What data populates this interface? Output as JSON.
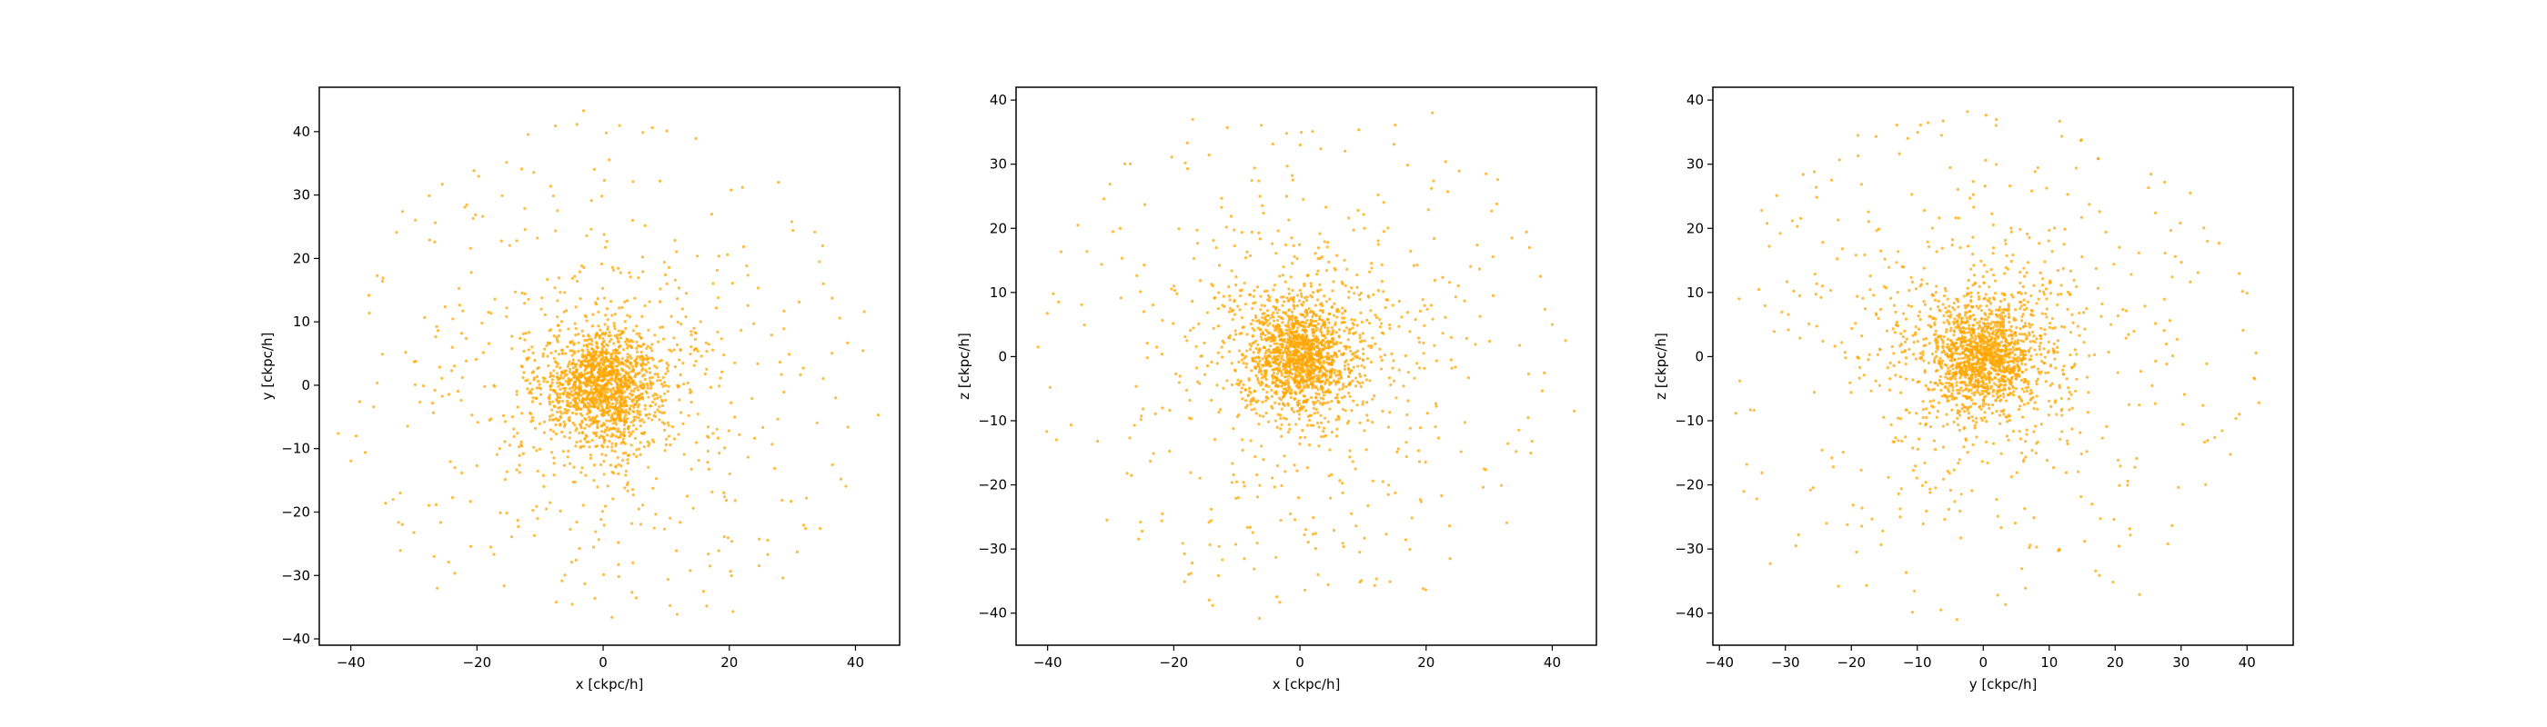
{
  "chart_data": [
    {
      "type": "scatter",
      "title": "",
      "xlabel": "x [ckpc/h]",
      "ylabel": "y [ckpc/h]",
      "xlim": [
        -45,
        47
      ],
      "ylim": [
        -41,
        47
      ],
      "xticks": [
        -40,
        -20,
        0,
        20,
        40
      ],
      "yticks": [
        -40,
        -30,
        -20,
        -10,
        0,
        10,
        20,
        30,
        40
      ],
      "grid": false,
      "legend": "none",
      "marker_color": "#FFA500",
      "series": [
        {
          "distribution": "concentrated near origin",
          "points_approx": 2000,
          "core_center": [
            0,
            0
          ],
          "core_sigma": [
            4,
            4
          ],
          "halo_extent": [
            [
              -42,
              43
            ],
            [
              -37,
              43
            ]
          ],
          "points": [
            [
              -3.1,
              43.3
            ],
            [
              7.8,
              40.6
            ],
            [
              0.5,
              39.8
            ],
            [
              10.1,
              40.1
            ],
            [
              14.7,
              38.9
            ],
            [
              -25.5,
              31.7
            ],
            [
              -12.9,
              34.1
            ],
            [
              27.8,
              32.0
            ],
            [
              -20.6,
              26.3
            ],
            [
              9.0,
              32.2
            ],
            [
              -16.0,
              29.9
            ],
            [
              29.9,
              25.8
            ],
            [
              -27.5,
              22.9
            ],
            [
              -26.7,
              22.6
            ],
            [
              22.1,
              31.2
            ],
            [
              -13.7,
              22.8
            ],
            [
              19.7,
              20.6
            ],
            [
              -34.9,
              16.9
            ],
            [
              -20.9,
              17.8
            ],
            [
              34.9,
              16.0
            ],
            [
              -31.3,
              5.2
            ],
            [
              -35.0,
              4.9
            ],
            [
              37.5,
              10.6
            ],
            [
              41.4,
              11.6
            ],
            [
              -29.8,
              0.1
            ],
            [
              -28.5,
              -0.1
            ],
            [
              -42.0,
              -7.6
            ],
            [
              -38.6,
              -2.6
            ],
            [
              43.6,
              -4.7
            ],
            [
              38.8,
              -6.6
            ],
            [
              -34.5,
              -18.6
            ],
            [
              -26.8,
              -27.0
            ],
            [
              -26.3,
              -32.0
            ],
            [
              28.5,
              -30.4
            ],
            [
              34.4,
              -22.6
            ],
            [
              -2.9,
              -31.3
            ],
            [
              -1.3,
              -33.6
            ],
            [
              1.4,
              -36.6
            ],
            [
              15.9,
              -32.5
            ],
            [
              26.1,
              -26.7
            ],
            [
              -14.5,
              -23.9
            ],
            [
              -10.9,
              -23.7
            ],
            [
              11.6,
              -26.1
            ],
            [
              20.4,
              -24.6
            ],
            [
              -23.5,
              -13.0
            ],
            [
              -15.3,
              12.2
            ],
            [
              13.2,
              14.5
            ],
            [
              -8.5,
              8.6
            ],
            [
              8.2,
              7.9
            ],
            [
              -11.0,
              -9.8
            ],
            [
              10.0,
              -9.4
            ],
            [
              -5.3,
              2.1
            ],
            [
              4.6,
              -2.4
            ],
            [
              -2.1,
              -5.5
            ],
            [
              2.6,
              5.1
            ],
            [
              -0.8,
              1.3
            ],
            [
              1.1,
              -0.7
            ],
            [
              0.4,
              0.2
            ],
            [
              -1.6,
              -1.2
            ],
            [
              2.0,
              1.8
            ],
            [
              -6.8,
              -3.5
            ],
            [
              6.1,
              3.3
            ],
            [
              -3.9,
              6.7
            ],
            [
              3.4,
              -6.9
            ],
            [
              -9.4,
              0.6
            ],
            [
              9.3,
              0.2
            ],
            [
              0.3,
              9.6
            ],
            [
              -0.2,
              -9.5
            ],
            [
              -15.8,
              -4.8
            ],
            [
              15.6,
              4.6
            ],
            [
              -4.5,
              17.2
            ],
            [
              4.8,
              -17.3
            ],
            [
              -19.2,
              9.8
            ],
            [
              18.4,
              -10.7
            ],
            [
              -9.0,
              -19.5
            ],
            [
              9.7,
              19.4
            ],
            [
              -24.0,
              2.3
            ],
            [
              23.6,
              -2.1
            ],
            [
              -1.9,
              24.6
            ],
            [
              2.4,
              -24.8
            ]
          ]
        }
      ]
    },
    {
      "type": "scatter",
      "title": "",
      "xlabel": "x [ckpc/h]",
      "ylabel": "z [ckpc/h]",
      "xlim": [
        -45,
        47
      ],
      "ylim": [
        -45,
        42
      ],
      "xticks": [
        -40,
        -20,
        0,
        20,
        40
      ],
      "yticks": [
        -40,
        -30,
        -20,
        -10,
        0,
        10,
        20,
        30,
        40
      ],
      "grid": false,
      "legend": "none",
      "marker_color": "#FFA500",
      "series": [
        {
          "distribution": "concentrated near origin",
          "points_approx": 2000,
          "core_center": [
            0,
            0
          ],
          "core_sigma": [
            4,
            4
          ],
          "halo_extent": [
            [
              -42,
              43
            ],
            [
              -41,
              38
            ]
          ],
          "points": [
            [
              -17.0,
              37.0
            ],
            [
              21.0,
              38.0
            ],
            [
              -11.5,
              35.7
            ],
            [
              2.0,
              35.1
            ],
            [
              -2.1,
              34.8
            ],
            [
              15.1,
              36.1
            ],
            [
              -30.1,
              26.9
            ],
            [
              -24.6,
              23.7
            ],
            [
              29.5,
              28.5
            ],
            [
              23.1,
              30.4
            ],
            [
              -35.2,
              20.5
            ],
            [
              -28.5,
              20.0
            ],
            [
              33.6,
              18.5
            ],
            [
              30.4,
              22.7
            ],
            [
              -39.1,
              9.8
            ],
            [
              -34.6,
              8.1
            ],
            [
              40.0,
              5.0
            ],
            [
              42.1,
              2.5
            ],
            [
              -41.5,
              1.5
            ],
            [
              -39.6,
              -4.8
            ],
            [
              43.5,
              -8.5
            ],
            [
              36.8,
              -13.2
            ],
            [
              -38.6,
              -13.0
            ],
            [
              -30.6,
              -25.5
            ],
            [
              -21.9,
              -25.6
            ],
            [
              32.8,
              -25.9
            ],
            [
              23.8,
              -31.5
            ],
            [
              -17.3,
              -33.8
            ],
            [
              -6.4,
              -40.8
            ],
            [
              0.8,
              -36.4
            ],
            [
              -3.8,
              -31.3
            ],
            [
              14.3,
              -35.1
            ],
            [
              8.9,
              -26.4
            ],
            [
              -12.8,
              -29.6
            ],
            [
              -25.2,
              -9.8
            ],
            [
              24.7,
              9.3
            ],
            [
              -16.8,
              15.3
            ],
            [
              16.9,
              -15.6
            ],
            [
              -8.6,
              8.2
            ],
            [
              8.2,
              -8.4
            ],
            [
              -9.7,
              -9.1
            ],
            [
              9.4,
              9.6
            ],
            [
              -4.6,
              2.4
            ],
            [
              4.2,
              -2.2
            ],
            [
              -2.3,
              -5.8
            ],
            [
              2.2,
              5.5
            ],
            [
              -0.9,
              1.5
            ],
            [
              1.2,
              -0.6
            ],
            [
              0.5,
              0.1
            ],
            [
              -1.6,
              -1.1
            ],
            [
              2.0,
              1.9
            ],
            [
              -6.7,
              -3.4
            ],
            [
              6.2,
              3.2
            ],
            [
              -3.6,
              6.8
            ],
            [
              3.7,
              -6.6
            ],
            [
              -9.6,
              0.9
            ],
            [
              9.5,
              -0.3
            ],
            [
              0.2,
              9.8
            ],
            [
              -0.1,
              -9.7
            ],
            [
              -15.9,
              -4.2
            ],
            [
              15.7,
              4.7
            ],
            [
              -4.4,
              17.6
            ],
            [
              5.0,
              -18.4
            ],
            [
              -19.5,
              9.8
            ],
            [
              19.1,
              -11.1
            ],
            [
              -8.8,
              -20.2
            ],
            [
              10.2,
              20.0
            ],
            [
              -24.2,
              2.1
            ],
            [
              24.1,
              -1.8
            ],
            [
              -2.1,
              25.0
            ],
            [
              2.1,
              -25.1
            ],
            [
              -27.4,
              -18.2
            ],
            [
              28.1,
              17.4
            ],
            [
              -7.2,
              29.4
            ],
            [
              6.8,
              -29.1
            ]
          ]
        }
      ]
    },
    {
      "type": "scatter",
      "title": "",
      "xlabel": "y [ckpc/h]",
      "ylabel": "z [ckpc/h]",
      "xlim": [
        -41,
        47
      ],
      "ylim": [
        -45,
        42
      ],
      "xticks": [
        -40,
        -30,
        -20,
        -10,
        0,
        10,
        20,
        30,
        40
      ],
      "yticks": [
        -40,
        -30,
        -20,
        -10,
        0,
        10,
        20,
        30,
        40
      ],
      "grid": false,
      "legend": "none",
      "marker_color": "#FFA500",
      "series": [
        {
          "distribution": "concentrated near origin",
          "points_approx": 2000,
          "core_center": [
            0,
            0
          ],
          "core_sigma": [
            4,
            4
          ],
          "halo_extent": [
            [
              -38,
              42
            ],
            [
              -41,
              38
            ]
          ],
          "points": [
            [
              -2.4,
              38.2
            ],
            [
              -9.5,
              36.1
            ],
            [
              11.6,
              36.7
            ],
            [
              -13.1,
              36.1
            ],
            [
              -19.0,
              34.5
            ],
            [
              14.9,
              33.8
            ],
            [
              27.5,
              27.2
            ],
            [
              -30.8,
              19.2
            ],
            [
              31.4,
              25.5
            ],
            [
              -28.2,
              20.3
            ],
            [
              -22.0,
              21.3
            ],
            [
              34.0,
              18.0
            ],
            [
              -36.9,
              -3.8
            ],
            [
              -31.7,
              3.9
            ],
            [
              39.4,
              4.1
            ],
            [
              40.0,
              9.9
            ],
            [
              41.8,
              -7.2
            ],
            [
              -35.3,
              -8.3
            ],
            [
              -32.3,
              -32.3
            ],
            [
              -28.4,
              -29.5
            ],
            [
              -20.6,
              -26.2
            ],
            [
              -4.0,
              -41.0
            ],
            [
              2.2,
              -37.2
            ],
            [
              6.4,
              -36.1
            ],
            [
              17.6,
              -34.1
            ],
            [
              23.7,
              -37.1
            ],
            [
              28.0,
              -29.2
            ],
            [
              29.6,
              -20.4
            ],
            [
              35.1,
              -12.6
            ],
            [
              -26.2,
              -20.8
            ],
            [
              -18.5,
              -17.7
            ],
            [
              -24.4,
              11.0
            ],
            [
              19.8,
              14.4
            ],
            [
              -14.9,
              15.2
            ],
            [
              15.7,
              -14.8
            ],
            [
              -8.8,
              8.1
            ],
            [
              8.2,
              -8.2
            ],
            [
              -9.1,
              -9.5
            ],
            [
              9.6,
              9.0
            ],
            [
              -4.6,
              2.1
            ],
            [
              4.1,
              -2.5
            ],
            [
              -2.2,
              -5.4
            ],
            [
              2.6,
              5.2
            ],
            [
              -0.9,
              1.4
            ],
            [
              1.2,
              -0.7
            ],
            [
              0.5,
              0.2
            ],
            [
              -1.7,
              -1.2
            ],
            [
              2.1,
              1.9
            ],
            [
              -6.6,
              -3.7
            ],
            [
              6.3,
              3.5
            ],
            [
              -3.6,
              6.6
            ],
            [
              3.5,
              -6.9
            ],
            [
              -9.5,
              0.5
            ],
            [
              9.4,
              -0.1
            ],
            [
              0.4,
              9.7
            ],
            [
              -0.3,
              -9.6
            ],
            [
              -15.7,
              -4.5
            ],
            [
              15.4,
              4.3
            ],
            [
              -4.7,
              17.4
            ],
            [
              5.1,
              -18.1
            ],
            [
              -19.1,
              9.4
            ],
            [
              18.7,
              -10.9
            ],
            [
              -8.7,
              -19.6
            ],
            [
              10.0,
              19.7
            ],
            [
              -24.3,
              2.4
            ],
            [
              23.9,
              -2.3
            ],
            [
              -2.0,
              24.7
            ],
            [
              2.2,
              -24.9
            ],
            [
              -12.6,
              -25.0
            ],
            [
              12.8,
              25.3
            ]
          ]
        }
      ]
    }
  ]
}
